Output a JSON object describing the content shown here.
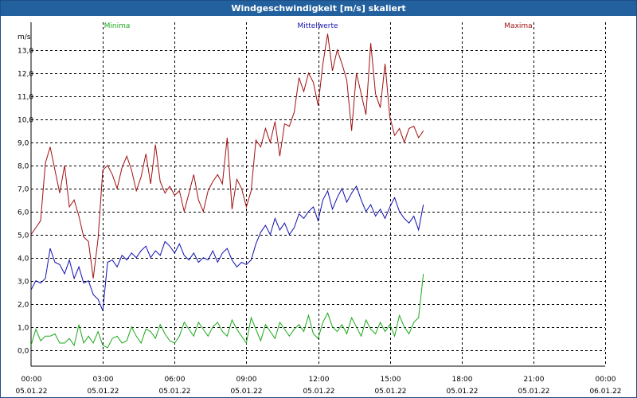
{
  "window": {
    "title": "Windgeschwindigkeit [m/s] skaliert"
  },
  "colors": {
    "min": "#1aa81a",
    "mean": "#1010b0",
    "max": "#a01010",
    "grid": "#000000",
    "title_bg": "#22609e"
  },
  "chart_data": {
    "type": "line",
    "title": "Windgeschwindigkeit [m/s] skaliert",
    "ylabel": "m/s",
    "ylim": [
      -0.7,
      14.2
    ],
    "xlim": [
      0,
      24
    ],
    "yticks": [
      0.0,
      1.0,
      2.0,
      3.0,
      4.0,
      5.0,
      6.0,
      7.0,
      8.0,
      9.0,
      10.0,
      11.0,
      12.0,
      13.0
    ],
    "ytick_labels": [
      "0,0",
      "1,0",
      "2,0",
      "3,0",
      "4,0",
      "5,0",
      "6,0",
      "7,0",
      "8,0",
      "9,0",
      "10,0",
      "11,0",
      "12,0",
      "13,0"
    ],
    "xticks": [
      {
        "time": "00:00",
        "date": "05.01.22"
      },
      {
        "time": "03:00",
        "date": "05.01.22"
      },
      {
        "time": "06:00",
        "date": "05.01.22"
      },
      {
        "time": "09:00",
        "date": "05.01.22"
      },
      {
        "time": "12:00",
        "date": "05.01.22"
      },
      {
        "time": "15:00",
        "date": "05.01.22"
      },
      {
        "time": "18:00",
        "date": "05.01.22"
      },
      {
        "time": "21:00",
        "date": "05.01.22"
      },
      {
        "time": "00:00",
        "date": "06.01.22"
      }
    ],
    "series": [
      {
        "name": "Minima",
        "color": "#1aa81a",
        "x": [
          0.0,
          0.2,
          0.4,
          0.6,
          0.8,
          1.0,
          1.2,
          1.4,
          1.6,
          1.8,
          2.0,
          2.2,
          2.4,
          2.6,
          2.8,
          3.0,
          3.2,
          3.4,
          3.6,
          3.8,
          4.0,
          4.2,
          4.4,
          4.6,
          4.8,
          5.0,
          5.2,
          5.4,
          5.6,
          5.8,
          6.0,
          6.2,
          6.4,
          6.6,
          6.8,
          7.0,
          7.2,
          7.4,
          7.6,
          7.8,
          8.0,
          8.2,
          8.4,
          8.6,
          8.8,
          9.0,
          9.2,
          9.4,
          9.6,
          9.8,
          10.0,
          10.2,
          10.4,
          10.6,
          10.8,
          11.0,
          11.2,
          11.4,
          11.6,
          11.8,
          12.0,
          12.2,
          12.4,
          12.6,
          12.8,
          13.0,
          13.2,
          13.4,
          13.6,
          13.8,
          14.0,
          14.2,
          14.4,
          14.6,
          14.8,
          15.0,
          15.2,
          15.4,
          15.6,
          15.8,
          16.0,
          16.2,
          16.4
        ],
        "values": [
          0.2,
          0.9,
          0.4,
          0.6,
          0.6,
          0.7,
          0.3,
          0.3,
          0.5,
          0.2,
          1.1,
          0.3,
          0.6,
          0.3,
          0.8,
          0.2,
          0.1,
          0.5,
          0.6,
          0.3,
          0.4,
          1.0,
          0.6,
          0.3,
          0.9,
          0.8,
          0.5,
          1.1,
          0.7,
          0.4,
          0.3,
          0.6,
          1.2,
          0.9,
          0.6,
          1.2,
          0.9,
          0.6,
          1.0,
          1.2,
          0.8,
          0.6,
          1.3,
          0.9,
          0.6,
          0.3,
          1.4,
          0.9,
          0.4,
          1.1,
          0.8,
          0.5,
          1.2,
          0.9,
          0.6,
          0.9,
          1.1,
          0.8,
          1.5,
          0.7,
          0.5,
          1.2,
          1.6,
          1.0,
          0.8,
          1.1,
          0.7,
          1.4,
          1.0,
          0.6,
          1.3,
          0.9,
          0.7,
          1.2,
          0.8,
          1.1,
          0.6,
          1.5,
          1.0,
          0.7,
          1.2,
          1.4,
          3.3
        ]
      },
      {
        "name": "Mittelwerte",
        "color": "#1010b0",
        "x": [
          0.0,
          0.2,
          0.4,
          0.6,
          0.8,
          1.0,
          1.2,
          1.4,
          1.6,
          1.8,
          2.0,
          2.2,
          2.4,
          2.6,
          2.8,
          3.0,
          3.2,
          3.4,
          3.6,
          3.8,
          4.0,
          4.2,
          4.4,
          4.6,
          4.8,
          5.0,
          5.2,
          5.4,
          5.6,
          5.8,
          6.0,
          6.2,
          6.4,
          6.6,
          6.8,
          7.0,
          7.2,
          7.4,
          7.6,
          7.8,
          8.0,
          8.2,
          8.4,
          8.6,
          8.8,
          9.0,
          9.2,
          9.4,
          9.6,
          9.8,
          10.0,
          10.2,
          10.4,
          10.6,
          10.8,
          11.0,
          11.2,
          11.4,
          11.6,
          11.8,
          12.0,
          12.2,
          12.4,
          12.6,
          12.8,
          13.0,
          13.2,
          13.4,
          13.6,
          13.8,
          14.0,
          14.2,
          14.4,
          14.6,
          14.8,
          15.0,
          15.2,
          15.4,
          15.6,
          15.8,
          16.0,
          16.2,
          16.4
        ],
        "values": [
          2.6,
          3.0,
          2.9,
          3.1,
          4.4,
          3.8,
          3.7,
          3.3,
          3.9,
          3.1,
          3.6,
          2.9,
          3.0,
          2.4,
          2.2,
          1.7,
          3.8,
          3.9,
          3.6,
          4.1,
          3.9,
          4.2,
          4.0,
          4.3,
          4.5,
          4.0,
          4.3,
          4.1,
          4.7,
          4.5,
          4.2,
          4.6,
          4.1,
          3.9,
          4.2,
          3.8,
          4.0,
          3.9,
          4.3,
          3.8,
          4.2,
          4.4,
          3.9,
          3.6,
          3.8,
          3.7,
          3.9,
          4.6,
          5.1,
          5.4,
          5.0,
          5.7,
          5.2,
          5.5,
          5.0,
          5.3,
          5.9,
          5.7,
          6.0,
          6.2,
          5.6,
          6.5,
          6.9,
          6.1,
          6.6,
          7.0,
          6.4,
          6.8,
          7.1,
          6.5,
          6.0,
          6.3,
          5.8,
          6.1,
          5.7,
          6.2,
          6.6,
          6.0,
          5.7,
          5.5,
          5.8,
          5.2,
          6.3
        ]
      },
      {
        "name": "Maxima",
        "color": "#a01010",
        "x": [
          0.0,
          0.2,
          0.4,
          0.6,
          0.8,
          1.0,
          1.2,
          1.4,
          1.6,
          1.8,
          2.0,
          2.2,
          2.4,
          2.6,
          2.8,
          3.0,
          3.2,
          3.4,
          3.6,
          3.8,
          4.0,
          4.2,
          4.4,
          4.6,
          4.8,
          5.0,
          5.2,
          5.4,
          5.6,
          5.8,
          6.0,
          6.2,
          6.4,
          6.6,
          6.8,
          7.0,
          7.2,
          7.4,
          7.6,
          7.8,
          8.0,
          8.2,
          8.4,
          8.6,
          8.8,
          9.0,
          9.2,
          9.4,
          9.6,
          9.8,
          10.0,
          10.2,
          10.4,
          10.6,
          10.8,
          11.0,
          11.2,
          11.4,
          11.6,
          11.8,
          12.0,
          12.2,
          12.4,
          12.6,
          12.8,
          13.0,
          13.2,
          13.4,
          13.6,
          13.8,
          14.0,
          14.2,
          14.4,
          14.6,
          14.8,
          15.0,
          15.2,
          15.4,
          15.6,
          15.8,
          16.0,
          16.2,
          16.4
        ],
        "values": [
          5.0,
          5.3,
          5.6,
          8.1,
          8.8,
          7.8,
          6.8,
          8.0,
          6.2,
          6.5,
          5.8,
          4.9,
          4.7,
          3.1,
          4.8,
          7.8,
          8.0,
          7.6,
          7.0,
          7.9,
          8.4,
          7.8,
          6.9,
          7.5,
          8.5,
          7.2,
          8.9,
          7.3,
          6.8,
          7.1,
          6.7,
          6.9,
          6.0,
          6.8,
          7.6,
          6.5,
          6.0,
          6.9,
          7.3,
          7.6,
          7.2,
          9.2,
          6.1,
          7.4,
          7.0,
          6.2,
          6.9,
          9.1,
          8.8,
          9.6,
          9.0,
          9.9,
          8.4,
          9.8,
          9.7,
          10.3,
          11.8,
          11.2,
          12.0,
          11.6,
          10.6,
          12.4,
          13.7,
          12.1,
          13.0,
          12.4,
          11.7,
          9.5,
          12.0,
          11.1,
          10.2,
          13.3,
          11.1,
          10.5,
          12.4,
          10.1,
          9.3,
          9.6,
          9.0,
          9.6,
          9.7,
          9.2,
          9.5
        ]
      }
    ]
  }
}
